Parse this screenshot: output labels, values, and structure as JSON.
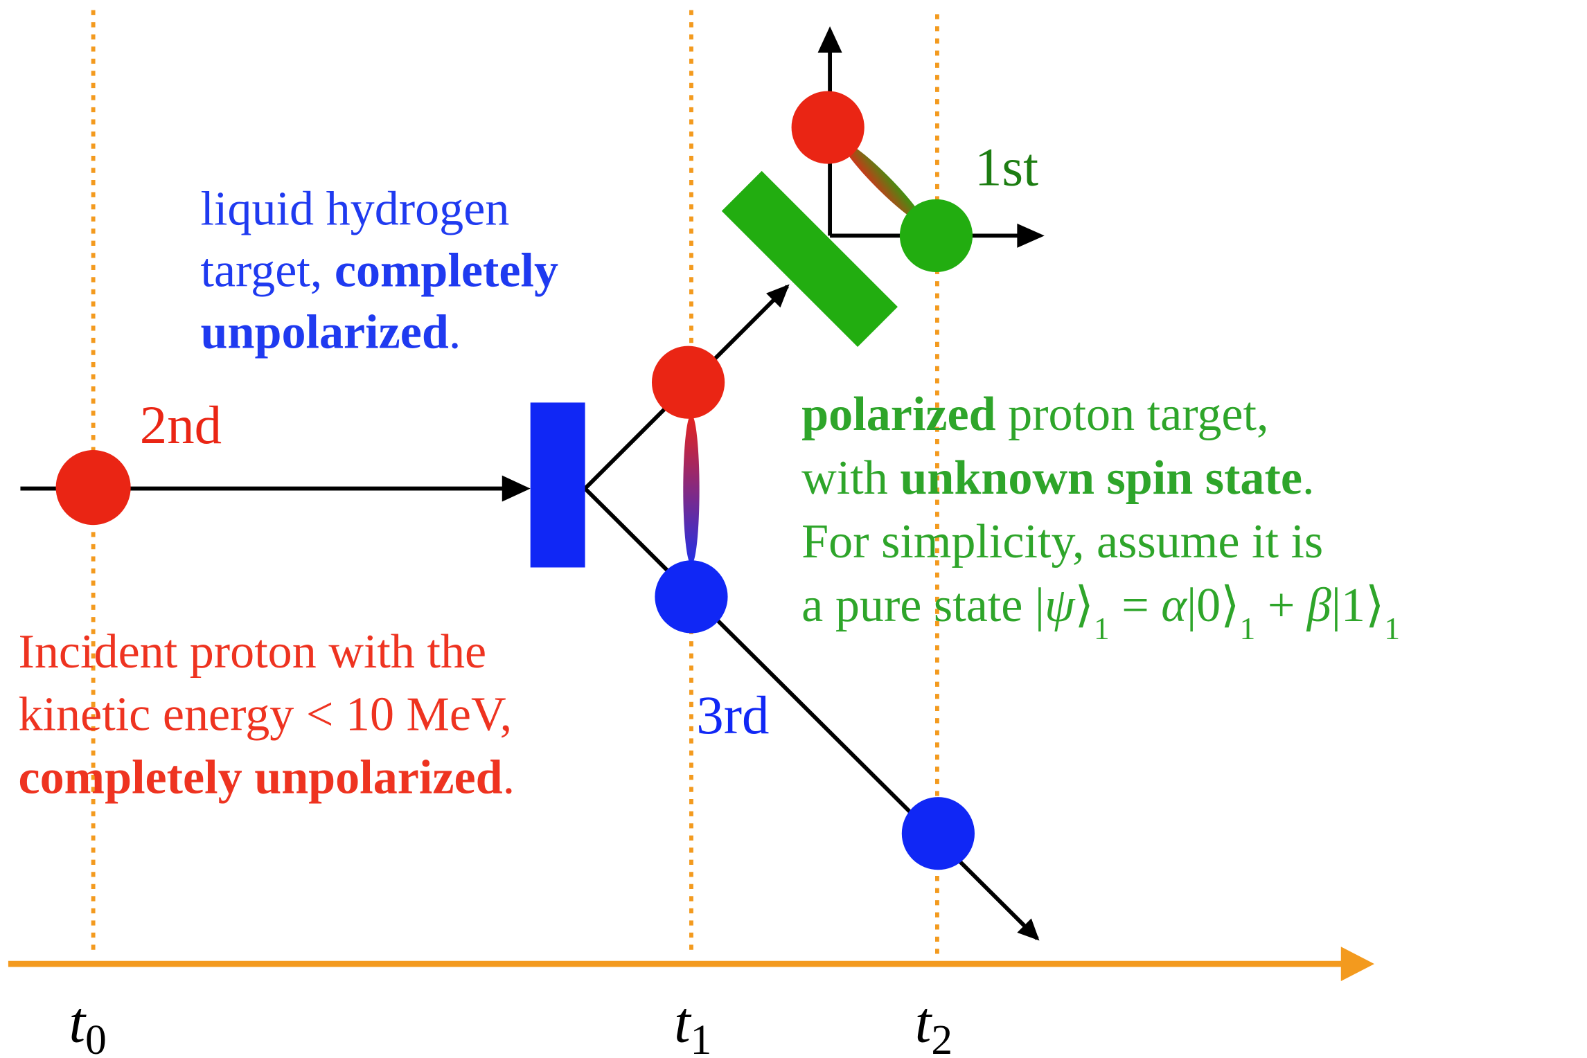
{
  "labels": {
    "second": "2nd",
    "third": "3rd",
    "first": "1st"
  },
  "times": [
    {
      "base": "t",
      "sub": "0"
    },
    {
      "base": "t",
      "sub": "1"
    },
    {
      "base": "t",
      "sub": "2"
    }
  ],
  "hydrogen_note": [
    [
      {
        "text": "liquid hydrogen"
      }
    ],
    [
      {
        "text": "target, "
      },
      {
        "text": "completely",
        "bold": true
      }
    ],
    [
      {
        "text": "unpolarized",
        "bold": true
      },
      {
        "text": "."
      }
    ]
  ],
  "incident_note": [
    [
      {
        "text": "Incident proton with the"
      }
    ],
    [
      {
        "text": "kinetic energy < 10 MeV,"
      }
    ],
    [
      {
        "text": "completely unpolarized",
        "bold": true
      },
      {
        "text": "."
      }
    ]
  ],
  "polarized_note": [
    [
      {
        "text": "polarized",
        "bold": true
      },
      {
        "text": "  proton  target,"
      }
    ],
    [
      {
        "text": "with "
      },
      {
        "text": "unknown spin state",
        "bold": true
      },
      {
        "text": "."
      }
    ],
    [
      {
        "text": "For simplicity, assume it is"
      }
    ],
    [
      {
        "text": "a pure state |"
      },
      {
        "text": "ψ",
        "italic": true
      },
      {
        "text": "⟩"
      },
      {
        "text": "1",
        "sub": true
      },
      {
        "text": " = "
      },
      {
        "text": "α",
        "italic": true
      },
      {
        "text": "|0⟩"
      },
      {
        "text": "1",
        "sub": true
      },
      {
        "text": " + "
      },
      {
        "text": "β",
        "italic": true
      },
      {
        "text": "|1⟩"
      },
      {
        "text": "1",
        "sub": true
      }
    ]
  ]
}
